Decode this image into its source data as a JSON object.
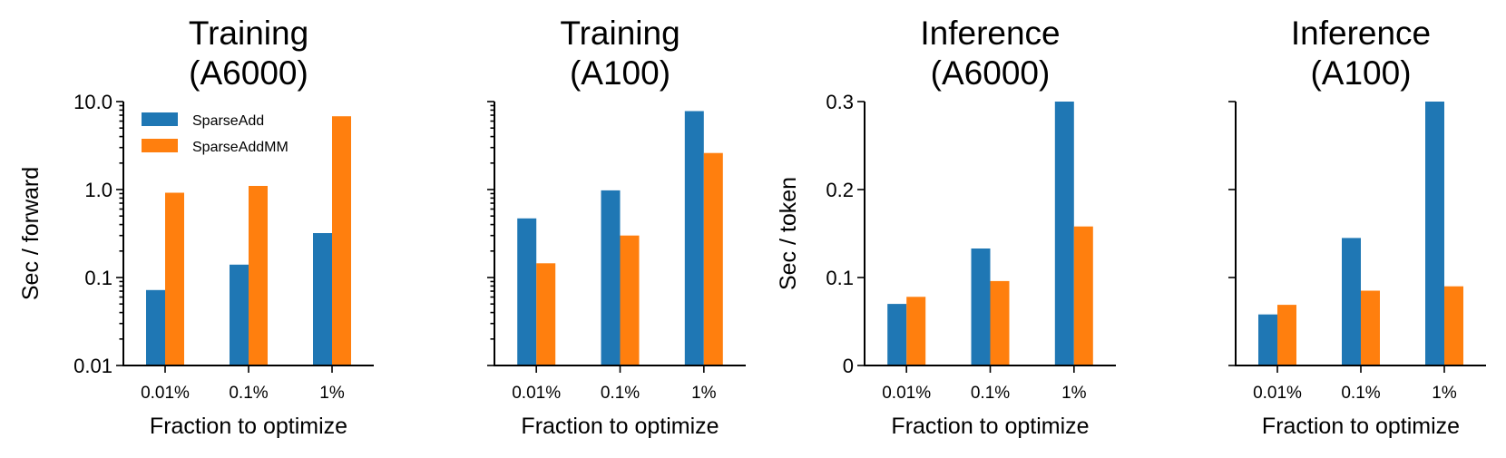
{
  "chart_data": [
    {
      "type": "bar",
      "title": [
        "Training",
        "(A6000)"
      ],
      "xlabel": "Fraction to optimize",
      "ylabel": "Sec / forward",
      "yscale": "log",
      "ylim": [
        0.01,
        10
      ],
      "yticks": [
        0.01,
        0.1,
        1,
        10
      ],
      "ytick_labels": [
        "0.01",
        "0.1",
        "1.0",
        "10.0"
      ],
      "categories": [
        "0.01%",
        "0.1%",
        "1%"
      ],
      "series": [
        {
          "name": "SparseAdd",
          "color": "#1f77b4",
          "values": [
            0.072,
            0.14,
            0.32
          ]
        },
        {
          "name": "SparseAddMM",
          "color": "#ff7f0e",
          "values": [
            0.92,
            1.1,
            6.8
          ]
        }
      ],
      "legend": {
        "position": "top-left",
        "entries": [
          "SparseAdd",
          "SparseAddMM"
        ]
      }
    },
    {
      "type": "bar",
      "title": [
        "Training",
        "(A100)"
      ],
      "xlabel": "Fraction to optimize",
      "ylabel": "",
      "yscale": "log",
      "ylim": [
        0.01,
        10
      ],
      "yticks": [
        0.01,
        0.1,
        1,
        10
      ],
      "ytick_labels": [],
      "categories": [
        "0.01%",
        "0.1%",
        "1%"
      ],
      "series": [
        {
          "name": "SparseAdd",
          "color": "#1f77b4",
          "values": [
            0.47,
            0.98,
            7.8
          ]
        },
        {
          "name": "SparseAddMM",
          "color": "#ff7f0e",
          "values": [
            0.145,
            0.3,
            2.6
          ]
        }
      ]
    },
    {
      "type": "bar",
      "title": [
        "Inference",
        "(A6000)"
      ],
      "xlabel": "Fraction to optimize",
      "ylabel": "Sec / token",
      "yscale": "linear",
      "ylim": [
        0,
        0.3
      ],
      "yticks": [
        0,
        0.1,
        0.2,
        0.3
      ],
      "ytick_labels": [
        "0",
        "0.1",
        "0.2",
        "0.3"
      ],
      "categories": [
        "0.01%",
        "0.1%",
        "1%"
      ],
      "series": [
        {
          "name": "SparseAdd",
          "color": "#1f77b4",
          "values": [
            0.07,
            0.133,
            0.3
          ]
        },
        {
          "name": "SparseAddMM",
          "color": "#ff7f0e",
          "values": [
            0.078,
            0.096,
            0.158
          ]
        }
      ]
    },
    {
      "type": "bar",
      "title": [
        "Inference",
        "(A100)"
      ],
      "xlabel": "Fraction to optimize",
      "ylabel": "",
      "yscale": "linear",
      "ylim": [
        0,
        0.3
      ],
      "yticks": [
        0,
        0.1,
        0.2,
        0.3
      ],
      "ytick_labels": [],
      "categories": [
        "0.01%",
        "0.1%",
        "1%"
      ],
      "series": [
        {
          "name": "SparseAdd",
          "color": "#1f77b4",
          "values": [
            0.058,
            0.145,
            0.3
          ]
        },
        {
          "name": "SparseAddMM",
          "color": "#ff7f0e",
          "values": [
            0.069,
            0.085,
            0.09
          ]
        }
      ]
    }
  ]
}
